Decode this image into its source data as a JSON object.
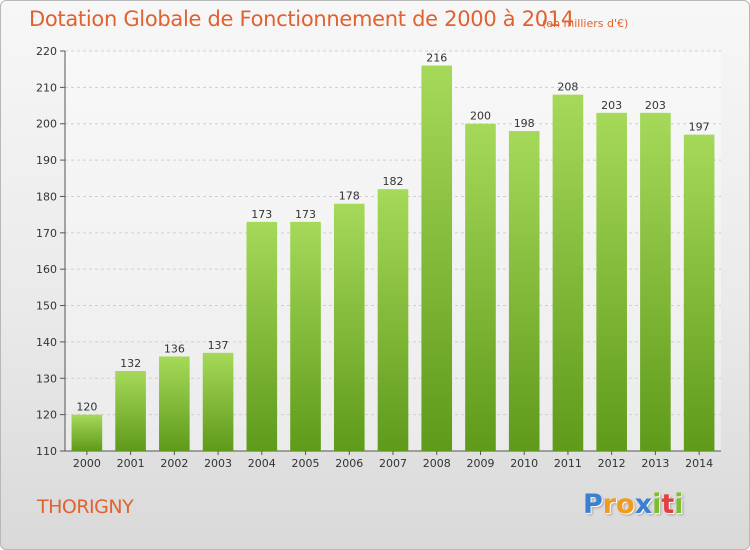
{
  "chart_data": {
    "type": "bar",
    "title": "Dotation Globale de Fonctionnement de 2000 à 2014",
    "subtitle": "(en milliers d'€)",
    "categories": [
      "2000",
      "2001",
      "2002",
      "2003",
      "2004",
      "2005",
      "2006",
      "2007",
      "2008",
      "2009",
      "2010",
      "2011",
      "2012",
      "2013",
      "2014"
    ],
    "values": [
      120,
      132,
      136,
      137,
      173,
      173,
      178,
      182,
      216,
      200,
      198,
      208,
      203,
      203,
      197
    ],
    "ylim": [
      110,
      220
    ],
    "yticks": [
      110,
      120,
      130,
      140,
      150,
      160,
      170,
      180,
      190,
      200,
      210,
      220
    ],
    "grid": true,
    "bar_color": "#7fbf2f",
    "bar_color_light": "#a6d95a",
    "bar_color_dark": "#5f9a1a"
  },
  "commune": "THORIGNY",
  "logo": {
    "letters": [
      "P",
      "r",
      "o",
      "x",
      "i",
      "t",
      "i"
    ],
    "colors": [
      "#3a7fd0",
      "#f29a1c",
      "#f29a1c",
      "#3a7fd0",
      "#7cbf2a",
      "#e04040",
      "#7cbf2a"
    ]
  },
  "colors": {
    "accent": "#e0622f"
  }
}
